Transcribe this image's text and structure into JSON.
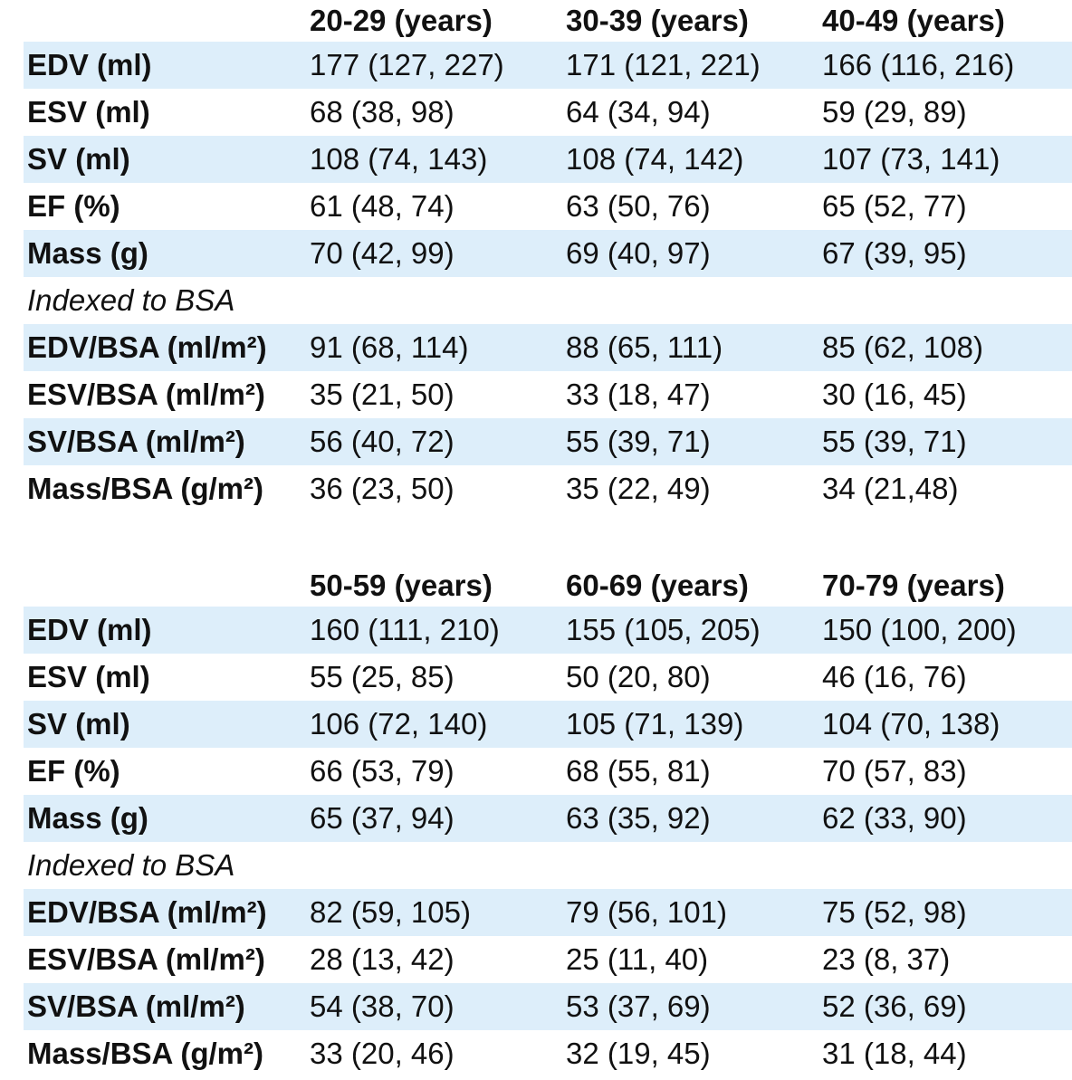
{
  "tables": [
    {
      "headers": [
        "",
        "20-29 (years)",
        "30-39 (years)",
        "40-49 (years)"
      ],
      "rows": [
        [
          "EDV (ml)",
          "177 (127, 227)",
          "171 (121, 221)",
          "166 (116, 216)"
        ],
        [
          "ESV (ml)",
          "68 (38, 98)",
          "64 (34, 94)",
          "59 (29, 89)"
        ],
        [
          "SV (ml)",
          "108 (74, 143)",
          "108 (74, 142)",
          "107 (73, 141)"
        ],
        [
          "EF (%)",
          "61 (48, 74)",
          "63 (50, 76)",
          "65 (52, 77)"
        ],
        [
          "Mass (g)",
          "70 (42, 99)",
          "69 (40, 97)",
          "67 (39, 95)"
        ]
      ],
      "section_label": "Indexed to BSA",
      "indexed_rows": [
        [
          "EDV/BSA (ml/m²)",
          "91 (68, 114)",
          "88 (65, 111)",
          "85 (62, 108)"
        ],
        [
          "ESV/BSA (ml/m²)",
          "35 (21, 50)",
          "33 (18, 47)",
          "30 (16, 45)"
        ],
        [
          "SV/BSA (ml/m²)",
          "56 (40, 72)",
          "55 (39, 71)",
          "55 (39, 71)"
        ],
        [
          "Mass/BSA (g/m²)",
          "36 (23, 50)",
          "35 (22, 49)",
          "34 (21,48)"
        ]
      ]
    },
    {
      "headers": [
        "",
        "50-59 (years)",
        "60-69 (years)",
        "70-79 (years)"
      ],
      "rows": [
        [
          "EDV (ml)",
          "160 (111, 210)",
          "155 (105, 205)",
          "150 (100, 200)"
        ],
        [
          "ESV (ml)",
          "55 (25, 85)",
          "50 (20, 80)",
          "46 (16, 76)"
        ],
        [
          "SV (ml)",
          "106 (72, 140)",
          "105 (71, 139)",
          "104 (70, 138)"
        ],
        [
          "EF (%)",
          "66 (53, 79)",
          "68 (55, 81)",
          "70 (57, 83)"
        ],
        [
          "Mass (g)",
          "65 (37, 94)",
          "63 (35, 92)",
          "62 (33, 90)"
        ]
      ],
      "section_label": "Indexed to BSA",
      "indexed_rows": [
        [
          "EDV/BSA (ml/m²)",
          "82 (59, 105)",
          "79 (56, 101)",
          "75 (52, 98)"
        ],
        [
          "ESV/BSA (ml/m²)",
          "28 (13, 42)",
          "25 (11, 40)",
          "23 (8, 37)"
        ],
        [
          "SV/BSA (ml/m²)",
          "54 (38, 70)",
          "53 (37, 69)",
          "52 (36, 69)"
        ],
        [
          "Mass/BSA (g/m²)",
          "33 (20, 46)",
          "32 (19, 45)",
          "31 (18, 44)"
        ]
      ]
    }
  ],
  "colors": {
    "row_shade": "#ddeefa",
    "text": "#111111"
  }
}
